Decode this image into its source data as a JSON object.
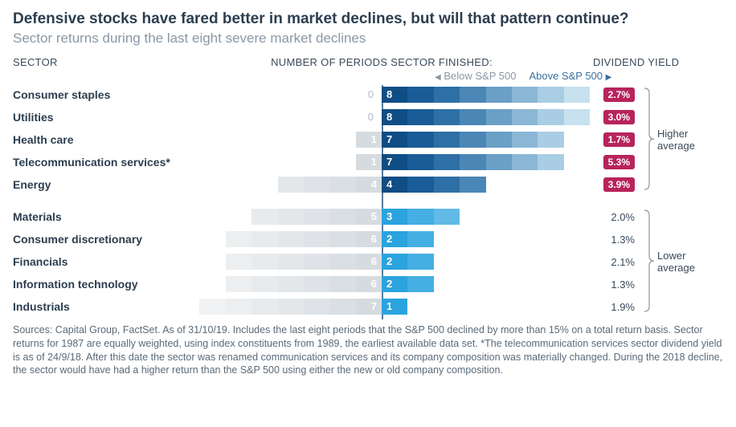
{
  "title": "Defensive stocks have fared better in market declines, but will that pattern continue?",
  "subtitle": "Sector returns during the last eight severe market declines",
  "headers": {
    "sector": "SECTOR",
    "periods": "NUMBER OF PERIODS SECTOR FINISHED:",
    "yield": "DIVIDEND YIELD",
    "below": "Below S&P 500",
    "above": "Above S&P 500"
  },
  "colors": {
    "left_gradient": [
      "#d6dbe0",
      "#dadfe3",
      "#dfe3e7",
      "#e3e7ea",
      "#e8ebed",
      "#eceef0",
      "#f0f2f3",
      "#f4f5f6"
    ],
    "right_gradient_dark": [
      "#0f4d85",
      "#1a5c97",
      "#2e6fa6",
      "#4a86b6",
      "#6a9fc6",
      "#8ab7d5",
      "#a9cde3",
      "#c7e1ef"
    ],
    "right_gradient_light": [
      "#2aa3df",
      "#45aee3",
      "#62bae7"
    ],
    "axis": "#5a7a9a",
    "badge": "#b7245c",
    "label_dark": "#2c3e50",
    "label_muted": "#8a98a6"
  },
  "unit_width": 32.375,
  "groups": [
    {
      "label": "Higher average",
      "rows": [
        {
          "sector": "Consumer staples",
          "below": 0,
          "above": 8,
          "yield": "2.7%",
          "badge": true,
          "palette": "dark"
        },
        {
          "sector": "Utilities",
          "below": 0,
          "above": 8,
          "yield": "3.0%",
          "badge": true,
          "palette": "dark"
        },
        {
          "sector": "Health care",
          "below": 1,
          "above": 7,
          "yield": "1.7%",
          "badge": true,
          "palette": "dark"
        },
        {
          "sector": "Telecommunication services*",
          "below": 1,
          "above": 7,
          "yield": "5.3%",
          "badge": true,
          "palette": "dark"
        },
        {
          "sector": "Energy",
          "below": 4,
          "above": 4,
          "yield": "3.9%",
          "badge": true,
          "palette": "dark"
        }
      ]
    },
    {
      "label": "Lower average",
      "rows": [
        {
          "sector": "Materials",
          "below": 5,
          "above": 3,
          "yield": "2.0%",
          "badge": false,
          "palette": "light"
        },
        {
          "sector": "Consumer discretionary",
          "below": 6,
          "above": 2,
          "yield": "1.3%",
          "badge": false,
          "palette": "light"
        },
        {
          "sector": "Financials",
          "below": 6,
          "above": 2,
          "yield": "2.1%",
          "badge": false,
          "palette": "light"
        },
        {
          "sector": "Information technology",
          "below": 6,
          "above": 2,
          "yield": "1.3%",
          "badge": false,
          "palette": "light"
        },
        {
          "sector": "Industrials",
          "below": 7,
          "above": 1,
          "yield": "1.9%",
          "badge": false,
          "palette": "light"
        }
      ]
    }
  ],
  "footnote": "Sources: Capital Group, FactSet. As of 31/10/19. Includes the last eight periods that the S&P 500 declined by more than 15% on a total return basis. Sector returns for 1987 are equally weighted, using index constituents from 1989, the earliest available data set. *The telecommunication services sector dividend yield is as of 24/9/18. After this date the sector was renamed communication services and its company composition was materially changed. During the 2018 decline, the sector would have had a higher return than the S&P 500 using either the new or old company composition."
}
